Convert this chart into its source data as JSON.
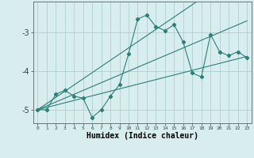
{
  "xlabel": "Humidex (Indice chaleur)",
  "x": [
    0,
    1,
    2,
    3,
    4,
    5,
    6,
    7,
    8,
    9,
    10,
    11,
    12,
    13,
    14,
    15,
    16,
    17,
    18,
    19,
    20,
    21,
    22,
    23
  ],
  "y_main": [
    -5.0,
    -5.0,
    -4.6,
    -4.5,
    -4.65,
    -4.7,
    -5.2,
    -5.0,
    -4.65,
    -4.35,
    -3.55,
    -2.65,
    -2.55,
    -2.85,
    -2.95,
    -2.8,
    -3.25,
    -4.05,
    -4.15,
    -3.05,
    -3.5,
    -3.6,
    -3.5,
    -3.65
  ],
  "y_reg1": [
    -5.0,
    -4.84,
    -4.68,
    -4.52,
    -4.36,
    -4.2,
    -4.04,
    -3.88,
    -3.72,
    -3.56,
    -3.4,
    -3.24,
    -3.08,
    -2.92,
    -2.76,
    -2.6,
    -2.44,
    -2.28,
    -2.12,
    -1.96,
    -1.8,
    -1.64,
    -1.48,
    -1.32
  ],
  "y_reg2": [
    -5.0,
    -4.9,
    -4.8,
    -4.7,
    -4.6,
    -4.5,
    -4.4,
    -4.3,
    -4.2,
    -4.1,
    -4.0,
    -3.9,
    -3.8,
    -3.7,
    -3.6,
    -3.5,
    -3.4,
    -3.3,
    -3.2,
    -3.1,
    -3.0,
    -2.9,
    -2.8,
    -2.7
  ],
  "y_reg3": [
    -5.0,
    -4.94,
    -4.88,
    -4.82,
    -4.76,
    -4.7,
    -4.64,
    -4.58,
    -4.52,
    -4.46,
    -4.4,
    -4.34,
    -4.28,
    -4.22,
    -4.16,
    -4.1,
    -4.04,
    -3.98,
    -3.92,
    -3.86,
    -3.8,
    -3.74,
    -3.68,
    -3.62
  ],
  "line_color": "#2d7d78",
  "bg_color": "#d8eeee",
  "grid_color": "#b0d0d0",
  "ylim": [
    -5.35,
    -2.2
  ],
  "yticks": [
    -5,
    -4,
    -3
  ],
  "xlim": [
    -0.5,
    23.5
  ]
}
